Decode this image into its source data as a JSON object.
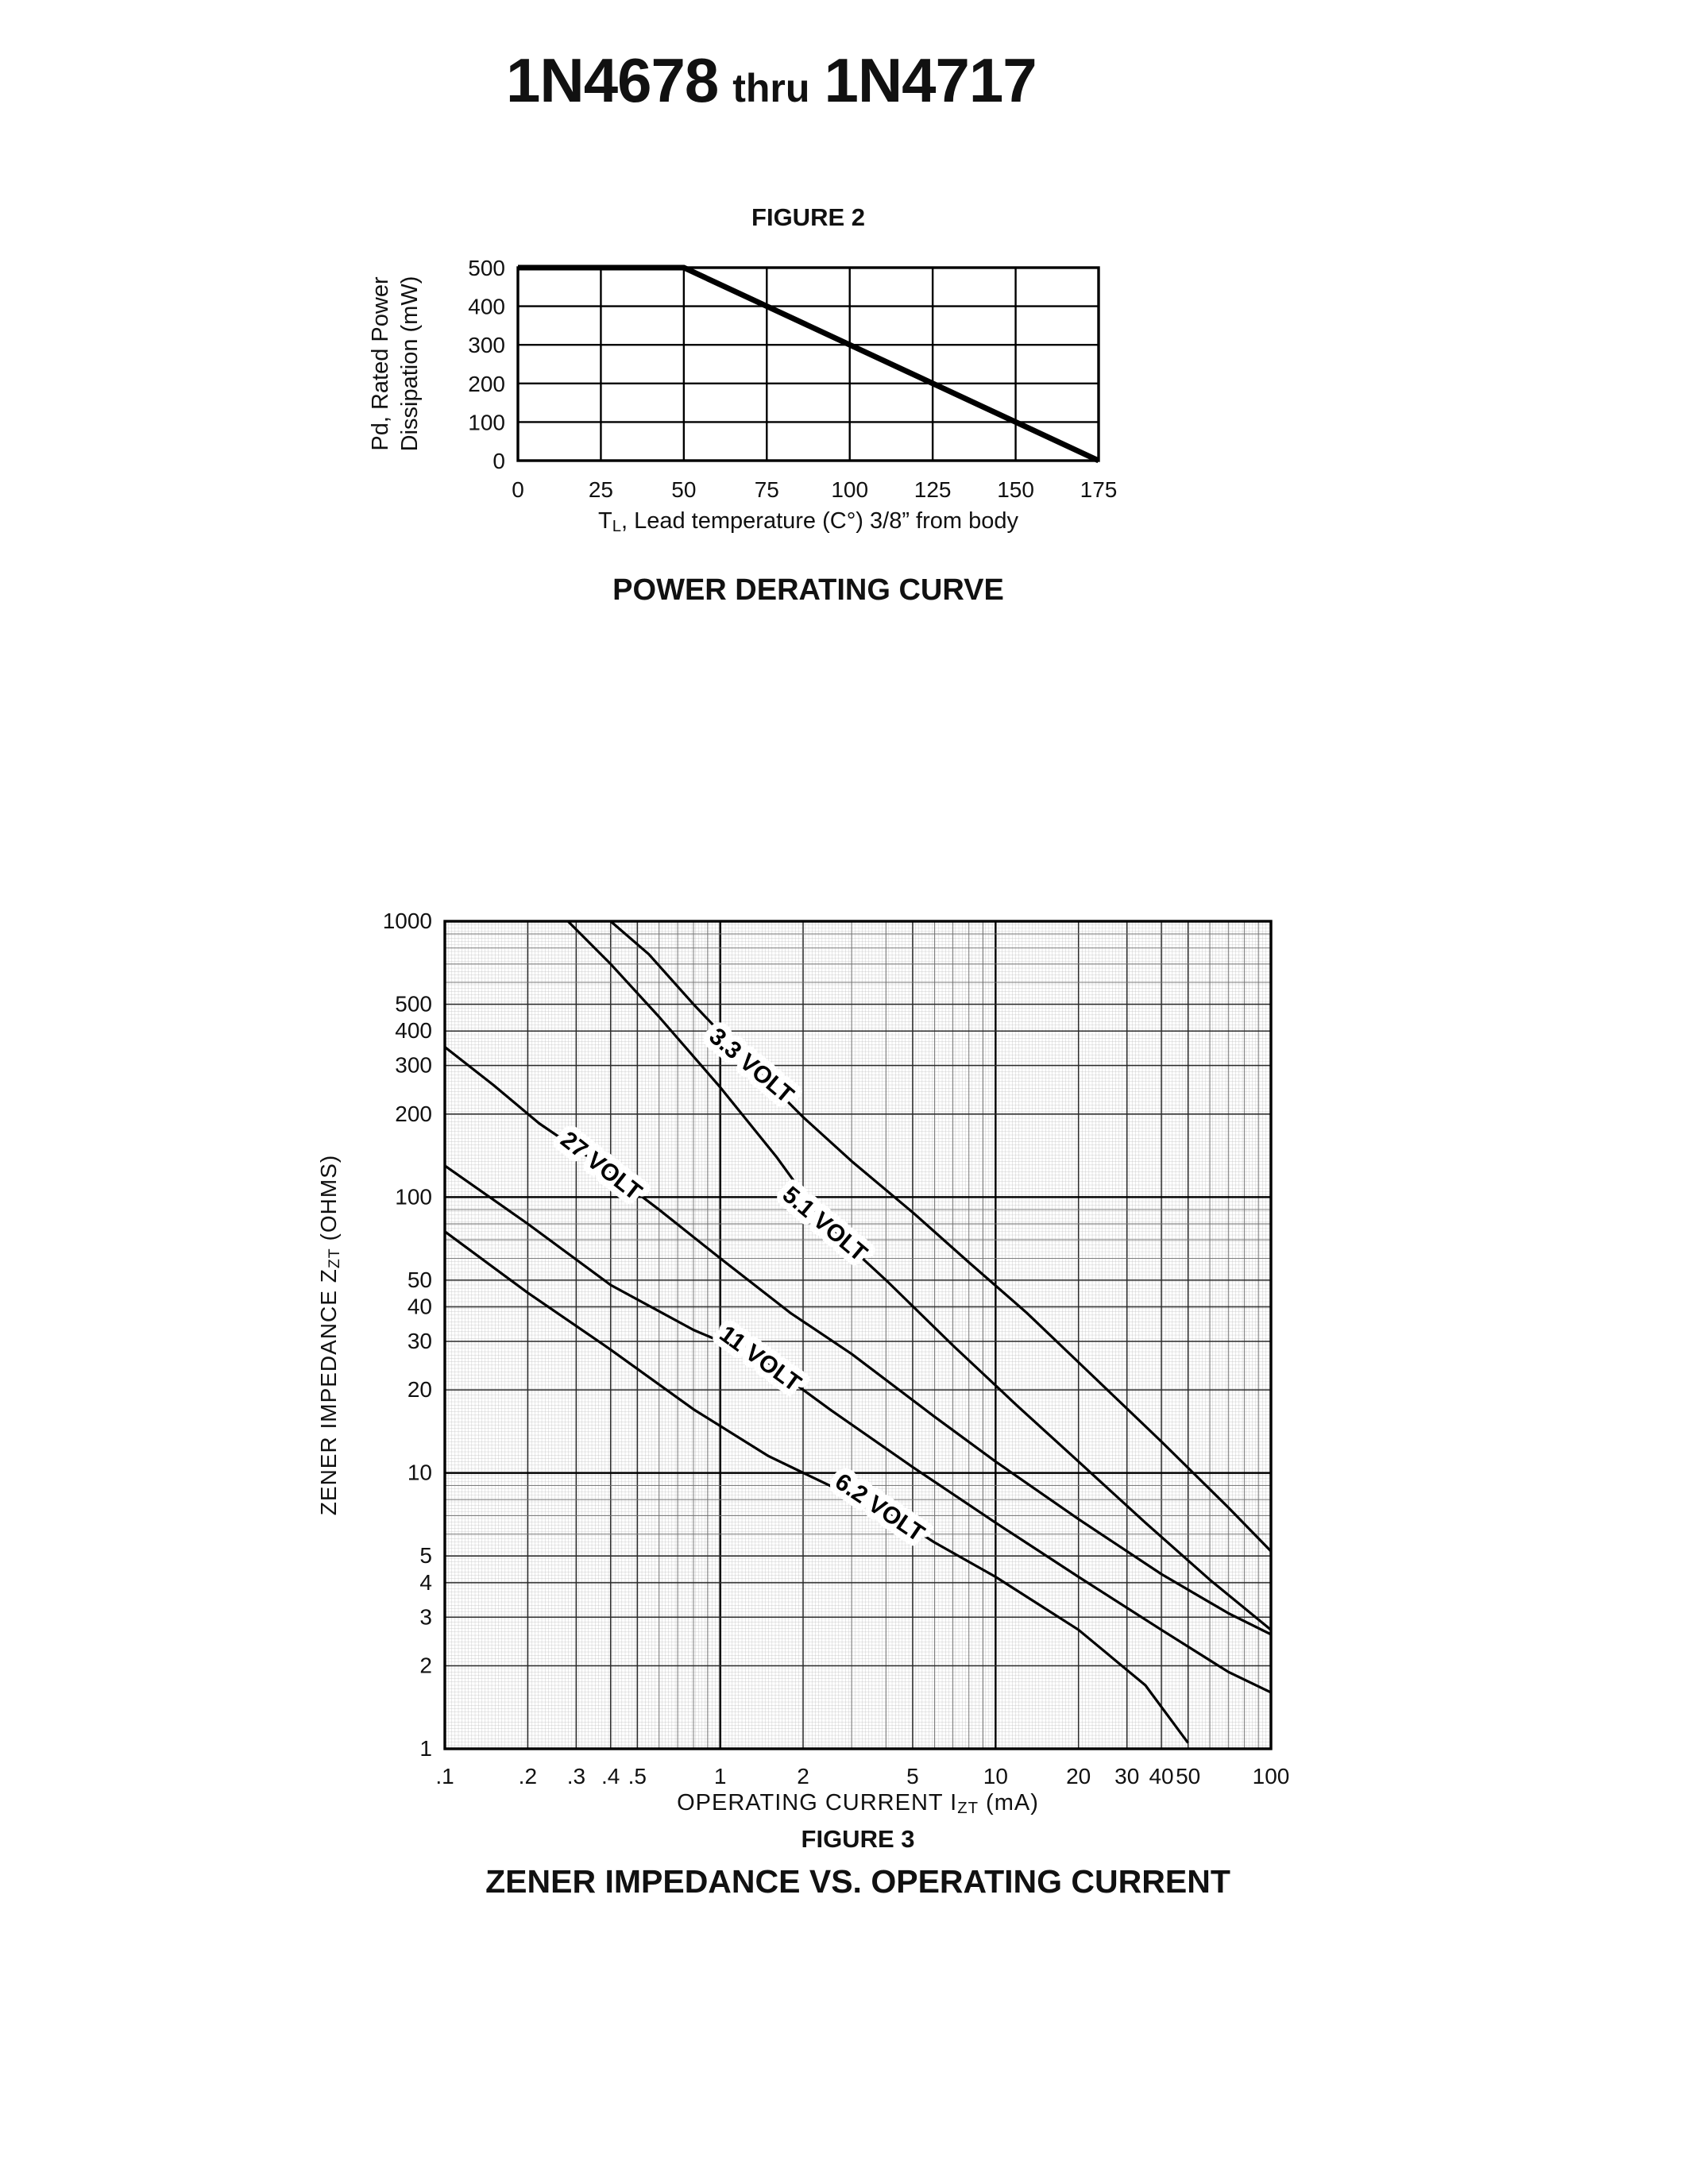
{
  "page": {
    "title": {
      "part1": "1N4678",
      "thru": "thru",
      "part2": "1N4717"
    }
  },
  "figure2": {
    "heading": "FIGURE 2",
    "caption": "POWER DERATING CURVE",
    "ylabel_line1": "Pd, Rated Power",
    "ylabel_line2": "Dissipation (mW)",
    "xlabel": {
      "pre": "T",
      "sub": "L",
      "post": ", Lead temperature (C°) 3/8” from body"
    }
  },
  "figure3": {
    "heading": "FIGURE 3",
    "caption": "ZENER IMPEDANCE VS. OPERATING CURRENT",
    "ylabel": {
      "pre": "ZENER IMPEDANCE Z",
      "sub": "ZT",
      "post": " (OHMS)"
    },
    "xlabel": {
      "pre": "OPERATING CURRENT I",
      "sub": "ZT",
      "post": " (mA)"
    }
  },
  "chart_data": [
    {
      "id": "figure2",
      "type": "line",
      "title": "POWER DERATING CURVE",
      "xlabel": "TL, Lead temperature (C°) 3/8” from body",
      "ylabel": "Pd, Rated Power Dissipation (mW)",
      "xlim": [
        0,
        175
      ],
      "ylim": [
        0,
        500
      ],
      "xticks": [
        0,
        25,
        50,
        75,
        100,
        125,
        150,
        175
      ],
      "yticks": [
        0,
        100,
        200,
        300,
        400,
        500
      ],
      "grid": true,
      "legend": "none",
      "series": [
        {
          "name": "power-derating",
          "x": [
            0,
            50,
            175
          ],
          "y": [
            500,
            500,
            0
          ]
        }
      ]
    },
    {
      "id": "figure3",
      "type": "line",
      "title": "ZENER IMPEDANCE VS. OPERATING CURRENT",
      "xlabel": "OPERATING CURRENT IZT (mA)",
      "ylabel": "ZENER IMPEDANCE ZZT (OHMS)",
      "xscale": "log",
      "yscale": "log",
      "xlim": [
        0.1,
        100
      ],
      "ylim": [
        1,
        1000
      ],
      "xticks": [
        0.1,
        0.2,
        0.3,
        0.4,
        0.5,
        1,
        2,
        5,
        10,
        20,
        30,
        40,
        50,
        100
      ],
      "xtick_labels": [
        ".1",
        ".2",
        ".3",
        ".4",
        ".5",
        "1",
        "2",
        "5",
        "10",
        "20",
        "30",
        "40",
        "50",
        "100"
      ],
      "yticks": [
        1000,
        500,
        400,
        300,
        200,
        100,
        50,
        40,
        30,
        20,
        10,
        5,
        4,
        3,
        2,
        1
      ],
      "ytick_labels": [
        "1000",
        "500",
        "400",
        "300",
        "200",
        "100",
        "50",
        "40",
        "30",
        "20",
        "10",
        "5",
        "4",
        "3",
        "2",
        "1"
      ],
      "grid": true,
      "legend": "inline-curve-labels",
      "series": [
        {
          "name": "3.3 VOLT",
          "x": [
            0.4,
            0.55,
            0.8,
            1.3,
            2,
            3,
            5,
            8,
            13,
            22,
            40,
            70,
            100
          ],
          "y": [
            1000,
            760,
            500,
            300,
            195,
            135,
            88,
            58,
            38,
            23,
            13,
            7.5,
            5.2
          ],
          "label_at": [
            1.3,
            300
          ],
          "label_rotation": 40
        },
        {
          "name": "5.1 VOLT",
          "x": [
            0.28,
            0.4,
            0.6,
            1,
            1.6,
            2.4,
            4,
            7,
            12,
            20,
            35,
            60,
            100
          ],
          "y": [
            1000,
            700,
            450,
            250,
            140,
            80,
            50,
            29,
            17.5,
            11,
            6.6,
            4.1,
            2.7
          ],
          "label_at": [
            2.4,
            80
          ],
          "label_rotation": 40
        },
        {
          "name": "27 VOLT",
          "x": [
            0.1,
            0.15,
            0.22,
            0.37,
            0.6,
            1,
            1.8,
            3,
            6,
            10,
            20,
            40,
            70,
            100
          ],
          "y": [
            350,
            255,
            185,
            130,
            90,
            60,
            38,
            27,
            16,
            11,
            6.8,
            4.3,
            3.1,
            2.6
          ],
          "label_at": [
            0.37,
            130
          ],
          "label_rotation": 38
        },
        {
          "name": "11 VOLT",
          "x": [
            0.1,
            0.2,
            0.4,
            0.8,
            1.4,
            2.5,
            5,
            10,
            20,
            40,
            70,
            100
          ],
          "y": [
            130,
            80,
            48,
            33,
            26,
            17,
            10.5,
            6.6,
            4.2,
            2.7,
            1.9,
            1.6
          ],
          "label_at": [
            1.4,
            26
          ],
          "label_rotation": 36
        },
        {
          "name": "6.2 VOLT",
          "x": [
            0.1,
            0.2,
            0.4,
            0.8,
            1.5,
            2.5,
            3.8,
            6,
            10,
            20,
            35,
            50
          ],
          "y": [
            75,
            45,
            28,
            17,
            11.5,
            9,
            7.5,
            5.6,
            4.2,
            2.7,
            1.7,
            1.05
          ],
          "label_at": [
            3.8,
            7.5
          ],
          "label_rotation": 34
        }
      ]
    }
  ]
}
